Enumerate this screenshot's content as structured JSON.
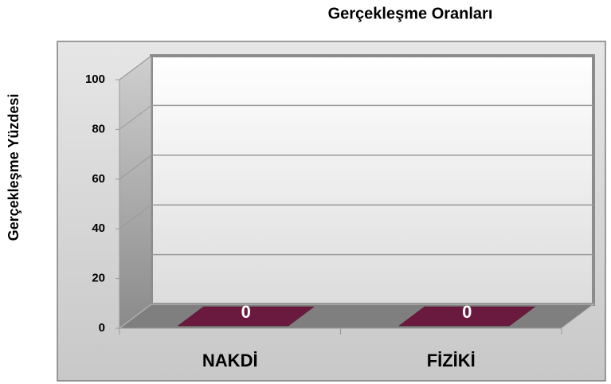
{
  "chart_data": {
    "type": "bar3d",
    "title": "Gerçekleşme Oranları",
    "y_label": "Gerçekleşme Yüzdesi",
    "categories": [
      "NAKDİ",
      "FİZİKİ"
    ],
    "values": [
      0,
      0
    ],
    "color": "#6b1a3f",
    "ylim": [
      0,
      100
    ],
    "yticks": [
      0,
      20,
      40,
      60,
      80,
      100
    ],
    "grid": true
  }
}
